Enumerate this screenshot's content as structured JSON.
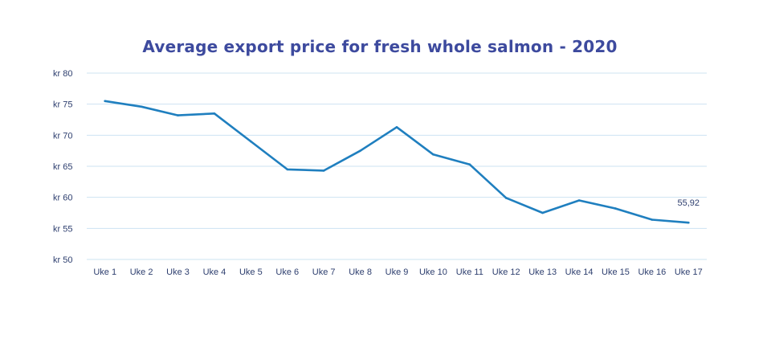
{
  "chart_data": {
    "type": "line",
    "title": "Average export price for fresh whole salmon - 2020",
    "xlabel": "",
    "ylabel": "",
    "categories": [
      "Uke 1",
      "Uke 2",
      "Uke 3",
      "Uke 4",
      "Uke 5",
      "Uke 6",
      "Uke 7",
      "Uke 8",
      "Uke 9",
      "Uke 10",
      "Uke 11",
      "Uke 12",
      "Uke 13",
      "Uke 14",
      "Uke 15",
      "Uke 16",
      "Uke 17"
    ],
    "series": [
      {
        "values": [
          75.5,
          74.6,
          73.2,
          73.5,
          69.0,
          64.5,
          64.3,
          67.5,
          71.3,
          66.9,
          65.3,
          59.9,
          57.5,
          59.5,
          58.2,
          56.4,
          55.92
        ]
      }
    ],
    "ylim": [
      50,
      80
    ],
    "yticks": [
      50,
      55,
      60,
      65,
      70,
      75,
      80
    ],
    "ytick_labels": [
      "kr 50",
      "kr 55",
      "kr 60",
      "kr 65",
      "kr 70",
      "kr 75",
      "kr 80"
    ],
    "data_labels": [
      {
        "index": 16,
        "text": "55,92"
      }
    ],
    "grid": true,
    "legend": "none",
    "colors": {
      "line": "#1f7fbf",
      "grid": "#cde3f2",
      "title": "#3d4a9e",
      "text": "#2d3e6e"
    }
  }
}
